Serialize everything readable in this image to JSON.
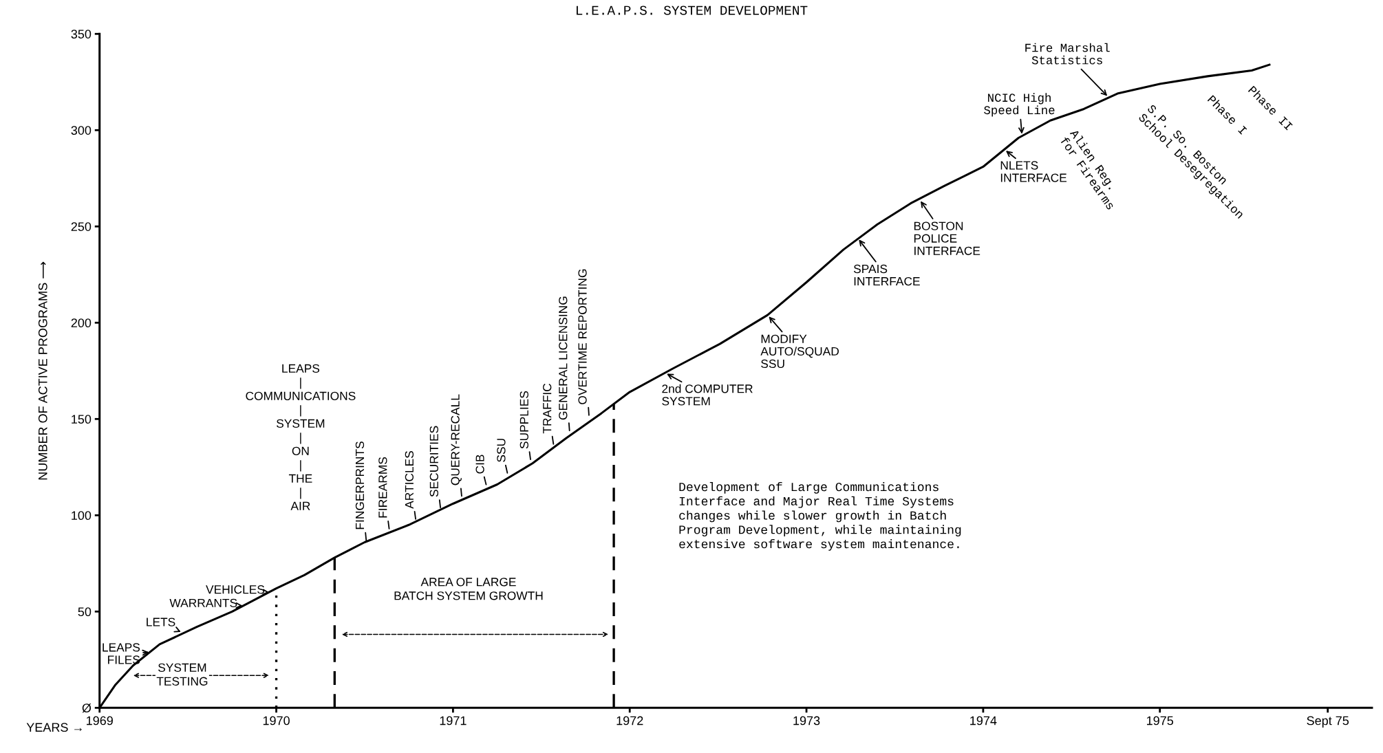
{
  "chart_data": {
    "type": "line",
    "title": "L.E.A.P.S. SYSTEM DEVELOPMENT",
    "xlabel": "YEARS →",
    "ylabel": "NUMBER OF ACTIVE PROGRAMS ⟶",
    "series": [
      {
        "color": "#000000",
        "x": [
          1969.0,
          1969.09,
          1969.19,
          1969.34,
          1969.55,
          1969.75,
          1970.0,
          1970.16,
          1970.33,
          1970.5,
          1970.75,
          1971.0,
          1971.25,
          1971.45,
          1971.64,
          1971.84,
          1972.0,
          1972.24,
          1972.51,
          1972.78,
          1973.0,
          1973.21,
          1973.4,
          1973.59,
          1973.78,
          1974.0,
          1974.2,
          1974.38,
          1974.57,
          1974.76,
          1975.0,
          1975.27,
          1975.52,
          1975.62
        ],
        "values": [
          0,
          12,
          22,
          33,
          42,
          50,
          62,
          69,
          78,
          86,
          95,
          106,
          116,
          127,
          140,
          153,
          164,
          176,
          189,
          204,
          221,
          238,
          251,
          262,
          271,
          281,
          296,
          305,
          311,
          319,
          324,
          328,
          331,
          334
        ]
      }
    ],
    "xlim": [
      1969,
      1976.2
    ],
    "ylim": [
      0,
      350
    ],
    "xticks": [
      1969,
      1970,
      1971,
      1972,
      1973,
      1974,
      1975,
      {
        "value": 1975.95,
        "label": "Sept 75"
      }
    ],
    "yticks": [
      {
        "value": 0,
        "label": "Ø"
      },
      50,
      100,
      150,
      200,
      250,
      300,
      350
    ],
    "grid": false,
    "ref_lines": [
      {
        "axis": "x",
        "value": 1970.0,
        "line_style": "dotted",
        "color": "#000000"
      },
      {
        "axis": "x",
        "value": 1970.33,
        "line_style": "dashed",
        "color": "#000000"
      },
      {
        "axis": "x",
        "value": 1971.91,
        "line_style": "dashed",
        "color": "#000000"
      }
    ],
    "annotations": [
      {
        "text": "LEAPS\nFILES",
        "x": 1969.29,
        "y": 29
      },
      {
        "text": "LETS",
        "x": 1969.47,
        "y": 39
      },
      {
        "text": "WARRANTS",
        "x": 1969.82,
        "y": 53
      },
      {
        "text": "VEHICLES",
        "x": 1969.96,
        "y": 60
      },
      "SYSTEM\nTESTING",
      "AREA OF LARGE\nBATCH SYSTEM GROWTH",
      "LEAPS\n|\nCOMMUNICATIONS\n|\nSYSTEM\n|\nON\n|\nTHE\n|\nAIR",
      {
        "text": "FINGERPRINTS",
        "x": 1970.51,
        "y": 86
      },
      {
        "text": "FIREARMS",
        "x": 1970.64,
        "y": 92
      },
      {
        "text": "ARTICLES",
        "x": 1970.79,
        "y": 97
      },
      {
        "text": "SECURITIES",
        "x": 1970.93,
        "y": 103
      },
      {
        "text": "QUERY-RECALL",
        "x": 1971.05,
        "y": 109
      },
      {
        "text": "CIB",
        "x": 1971.19,
        "y": 115
      },
      {
        "text": "SSU",
        "x": 1971.31,
        "y": 121
      },
      {
        "text": "SUPPLIES",
        "x": 1971.44,
        "y": 128
      },
      {
        "text": "TRAFFIC",
        "x": 1971.57,
        "y": 136
      },
      {
        "text": "GENERAL LICENSING",
        "x": 1971.66,
        "y": 143
      },
      {
        "text": "OVERTIME REPORTING",
        "x": 1971.77,
        "y": 151
      },
      {
        "text": "2nd COMPUTER\nSYSTEM",
        "x": 1972.2,
        "y": 174
      },
      {
        "text": "MODIFY\nAUTO/SQUAD\nSSU",
        "x": 1972.78,
        "y": 204
      },
      {
        "text": "SPAIS\nINTERFACE",
        "x": 1973.29,
        "y": 244
      },
      {
        "text": "BOSTON\nPOLICE\nINTERFACE",
        "x": 1973.64,
        "y": 264
      },
      {
        "text": "NLETS\nINTERFACE",
        "x": 1974.12,
        "y": 290
      },
      {
        "text": "NCIC High\nSpeed Line",
        "x": 1974.22,
        "y": 297
      },
      {
        "text": "Fire Marshal\nStatistics",
        "x": 1974.71,
        "y": 317
      },
      {
        "text": "Alien Reg.\nfor Firearms",
        "x": 1974.57,
        "y": 311
      },
      {
        "text": "S.P. So. Boston\nSchool Desegregation",
        "x": 1975.0,
        "y": 324
      },
      {
        "text": "Phase I",
        "x": 1975.27,
        "y": 328
      },
      {
        "text": "Phase II",
        "x": 1975.52,
        "y": 331
      },
      "Development of Large Communications\nInterface and Major Real Time Systems\nchanges while slower growth in Batch\nProgram Development, while maintaining\nextensive software system maintenance."
    ]
  }
}
